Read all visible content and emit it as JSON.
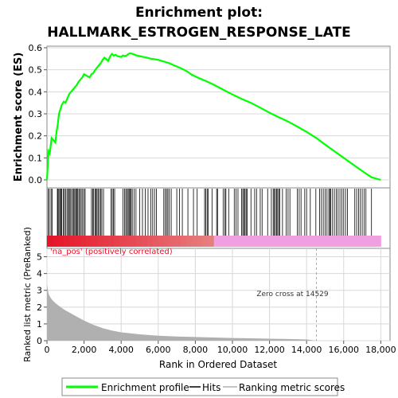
{
  "chart_data": [
    {
      "type": "line",
      "title_line1": "Enrichment plot:",
      "title_line2": "HALLMARK_ESTROGEN_RESPONSE_LATE",
      "ylabel": "Enrichment score (ES)",
      "ylim": [
        0,
        0.6
      ],
      "yticks": [
        "0.0",
        "0.1",
        "0.2",
        "0.3",
        "0.4",
        "0.5",
        "0.6"
      ],
      "line_color": "#00ff00",
      "series": [
        {
          "name": "Enrichment profile",
          "x": [
            0,
            80,
            150,
            250,
            350,
            450,
            520,
            580,
            650,
            720,
            800,
            900,
            1000,
            1100,
            1200,
            1300,
            1400,
            1500,
            1600,
            1700,
            1800,
            1900,
            2000,
            2100,
            2200,
            2300,
            2400,
            2500,
            2600,
            2700,
            2800,
            2900,
            3000,
            3100,
            3200,
            3300,
            3400,
            3500,
            3600,
            3700,
            3800,
            3900,
            4000,
            4100,
            4200,
            4300,
            4400,
            4500,
            4600,
            4700,
            4800,
            5000,
            5200,
            5400,
            5600,
            5800,
            6000,
            6200,
            6400,
            6600,
            6800,
            7000,
            7200,
            7400,
            7600,
            7800,
            8000,
            8200,
            8400,
            8600,
            8800,
            9000,
            9500,
            10000,
            10500,
            11000,
            11500,
            12000,
            12500,
            13000,
            13500,
            14000,
            14529,
            15000,
            15500,
            16000,
            16500,
            17000,
            17500,
            18000
          ],
          "values": [
            0.0,
            0.13,
            0.12,
            0.19,
            0.18,
            0.17,
            0.22,
            0.25,
            0.3,
            0.32,
            0.34,
            0.355,
            0.35,
            0.37,
            0.39,
            0.4,
            0.41,
            0.42,
            0.43,
            0.445,
            0.455,
            0.465,
            0.48,
            0.475,
            0.47,
            0.465,
            0.48,
            0.485,
            0.5,
            0.51,
            0.52,
            0.53,
            0.545,
            0.555,
            0.548,
            0.54,
            0.56,
            0.572,
            0.565,
            0.568,
            0.562,
            0.56,
            0.558,
            0.565,
            0.562,
            0.565,
            0.572,
            0.575,
            0.572,
            0.57,
            0.566,
            0.562,
            0.558,
            0.555,
            0.55,
            0.548,
            0.545,
            0.54,
            0.535,
            0.53,
            0.522,
            0.515,
            0.508,
            0.5,
            0.49,
            0.478,
            0.47,
            0.462,
            0.455,
            0.448,
            0.44,
            0.432,
            0.41,
            0.388,
            0.368,
            0.35,
            0.328,
            0.305,
            0.285,
            0.265,
            0.242,
            0.218,
            0.19,
            0.16,
            0.13,
            0.1,
            0.07,
            0.04,
            0.012,
            0.0
          ]
        }
      ]
    },
    {
      "type": "heatmap",
      "hits_description": "gene-set hit positions",
      "hits": [
        60,
        130,
        220,
        280,
        560,
        600,
        650,
        720,
        760,
        800,
        880,
        940,
        1000,
        1080,
        1150,
        1200,
        1250,
        1320,
        1400,
        1450,
        1500,
        1560,
        1600,
        1660,
        1720,
        1780,
        1850,
        1920,
        2000,
        2060,
        2400,
        2470,
        2520,
        2600,
        2650,
        2700,
        2760,
        2830,
        2900,
        2960,
        3050,
        3450,
        3520,
        3580,
        3650,
        4100,
        4180,
        4250,
        4320,
        4380,
        4430,
        4480,
        4540,
        4600,
        4700,
        4800,
        5000,
        5150,
        5300,
        5450,
        5600,
        5700,
        5800,
        5900,
        6300,
        6380,
        6450,
        6520,
        6600,
        6700,
        7000,
        7150,
        7300,
        7600,
        7900,
        8100,
        8500,
        8560,
        8640,
        8700,
        8900,
        9150,
        9200,
        9500,
        9600,
        9650,
        9800,
        10100,
        10200,
        10300,
        10500,
        10560,
        10620,
        10680,
        10740,
        10800,
        11000,
        11200,
        11300,
        11500,
        11600,
        11900,
        12100,
        12200,
        12260,
        12320,
        12380,
        12440,
        12500,
        12560,
        12700,
        12900,
        13000,
        13100,
        13500,
        13600,
        13700,
        13900,
        14000,
        14200,
        14500,
        14700,
        14800,
        14900,
        15000,
        15100,
        15200,
        15250,
        15300,
        15400,
        15500,
        15600,
        15700,
        15800,
        15900,
        16000,
        16100,
        16200,
        16600,
        16700,
        16800,
        16900,
        17000,
        17100,
        17200,
        17500
      ],
      "color_pos": "#e8112d",
      "color_neg": "#f0a0e0"
    },
    {
      "type": "area",
      "ylabel": "Ranked list metric (PreRanked)",
      "xlabel": "Rank in Ordered Dataset",
      "ylim": [
        0,
        5.5
      ],
      "xlim": [
        0,
        18500
      ],
      "yticks": [
        "0",
        "1",
        "2",
        "3",
        "4",
        "5"
      ],
      "xticks": [
        "0",
        "2,000",
        "4,000",
        "6,000",
        "8,000",
        "10,000",
        "12,000",
        "14,000",
        "16,000",
        "18,000"
      ],
      "pos_label": "'na_pos' (positively correlated)",
      "zero_cross_label": "Zero cross at 14529",
      "zero_cross": 14529,
      "fill_color": "#b0b0b0",
      "x": [
        0,
        50,
        100,
        200,
        300,
        500,
        800,
        1000,
        1500,
        2000,
        2500,
        3000,
        3500,
        4000,
        5000,
        6000,
        7000,
        8000,
        9000,
        10000,
        11000,
        12000,
        13000,
        14000,
        14529
      ],
      "values": [
        3.4,
        3.0,
        2.75,
        2.55,
        2.4,
        2.2,
        1.95,
        1.8,
        1.5,
        1.2,
        0.95,
        0.75,
        0.6,
        0.5,
        0.38,
        0.3,
        0.25,
        0.22,
        0.19,
        0.16,
        0.14,
        0.12,
        0.1,
        0.07,
        0.0
      ]
    }
  ],
  "legend": {
    "items": [
      {
        "label": "Enrichment profile",
        "color": "#00ff00"
      },
      {
        "label": "Hits",
        "color": "#000000"
      },
      {
        "label": "Ranking metric scores",
        "color": "#b0b0b0"
      }
    ]
  }
}
